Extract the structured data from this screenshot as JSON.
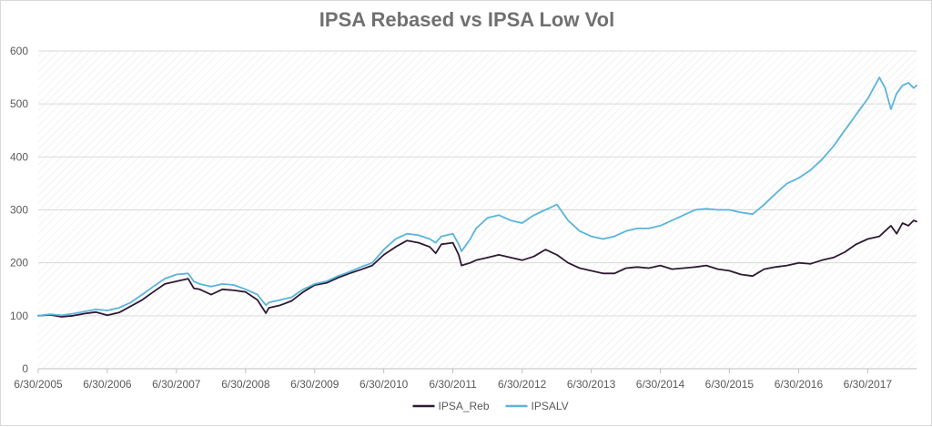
{
  "chart_data": {
    "type": "line",
    "title": "IPSA Rebased vs IPSA Low Vol",
    "xlabel": "",
    "ylabel": "",
    "ylim": [
      0,
      600
    ],
    "yticks": [
      0,
      100,
      200,
      300,
      400,
      500,
      600
    ],
    "xlim": [
      "6/30/2005",
      "3/15/2018"
    ],
    "xticks": [
      "6/30/2005",
      "6/30/2006",
      "6/30/2007",
      "6/30/2008",
      "6/30/2009",
      "6/30/2010",
      "6/30/2011",
      "6/30/2012",
      "6/30/2013",
      "6/30/2014",
      "6/30/2015",
      "6/30/2016",
      "6/30/2017"
    ],
    "grid": true,
    "legend_position": "bottom",
    "series": [
      {
        "name": "IPSA_Reb",
        "color": "#2e1a33",
        "x": [
          "6/30/2005",
          "8/31/2005",
          "10/31/2005",
          "12/31/2005",
          "2/28/2006",
          "4/30/2006",
          "6/30/2006",
          "8/31/2006",
          "10/31/2006",
          "12/31/2006",
          "2/28/2007",
          "4/30/2007",
          "6/30/2007",
          "8/31/2007",
          "9/30/2007",
          "10/31/2007",
          "12/31/2007",
          "2/28/2008",
          "4/30/2008",
          "6/30/2008",
          "8/31/2008",
          "10/15/2008",
          "10/31/2008",
          "12/31/2008",
          "2/28/2009",
          "4/30/2009",
          "6/30/2009",
          "8/31/2009",
          "10/31/2009",
          "12/31/2009",
          "2/28/2010",
          "4/30/2010",
          "6/30/2010",
          "8/31/2010",
          "10/31/2010",
          "12/31/2010",
          "2/28/2011",
          "3/31/2011",
          "4/30/2011",
          "6/30/2011",
          "7/31/2011",
          "8/15/2011",
          "9/30/2011",
          "10/31/2011",
          "12/31/2011",
          "2/28/2012",
          "4/30/2012",
          "6/30/2012",
          "8/31/2012",
          "10/31/2012",
          "12/31/2012",
          "2/28/2013",
          "4/30/2013",
          "6/30/2013",
          "8/31/2013",
          "10/31/2013",
          "12/31/2013",
          "2/28/2014",
          "4/30/2014",
          "6/30/2014",
          "8/31/2014",
          "10/31/2014",
          "12/31/2014",
          "2/28/2015",
          "4/30/2015",
          "6/30/2015",
          "8/31/2015",
          "10/31/2015",
          "12/31/2015",
          "2/28/2016",
          "4/30/2016",
          "6/30/2016",
          "8/31/2016",
          "10/31/2016",
          "12/31/2016",
          "2/28/2017",
          "4/30/2017",
          "6/30/2017",
          "8/31/2017",
          "9/30/2017",
          "10/31/2017",
          "11/30/2017",
          "12/31/2017",
          "1/31/2018",
          "2/28/2018",
          "3/15/2018"
        ],
        "values": [
          100,
          102,
          98,
          100,
          104,
          107,
          101,
          106,
          118,
          130,
          145,
          160,
          165,
          170,
          152,
          150,
          140,
          150,
          148,
          145,
          130,
          105,
          115,
          120,
          128,
          145,
          158,
          162,
          172,
          180,
          187,
          195,
          215,
          230,
          242,
          238,
          230,
          218,
          235,
          238,
          215,
          195,
          200,
          205,
          210,
          215,
          210,
          205,
          212,
          225,
          215,
          200,
          190,
          185,
          180,
          180,
          190,
          192,
          190,
          195,
          188,
          190,
          192,
          195,
          188,
          185,
          178,
          175,
          188,
          192,
          195,
          200,
          198,
          205,
          210,
          220,
          235,
          245,
          250,
          260,
          270,
          255,
          275,
          270,
          280,
          278
        ]
      },
      {
        "name": "IPSALV",
        "color": "#5ab4db",
        "x": [
          "6/30/2005",
          "8/31/2005",
          "10/31/2005",
          "12/31/2005",
          "2/28/2006",
          "4/30/2006",
          "6/30/2006",
          "8/31/2006",
          "10/31/2006",
          "12/31/2006",
          "2/28/2007",
          "4/30/2007",
          "6/30/2007",
          "8/31/2007",
          "9/30/2007",
          "10/31/2007",
          "12/31/2007",
          "2/28/2008",
          "4/30/2008",
          "6/30/2008",
          "8/31/2008",
          "10/15/2008",
          "10/31/2008",
          "12/31/2008",
          "2/28/2009",
          "4/30/2009",
          "6/30/2009",
          "8/31/2009",
          "10/31/2009",
          "12/31/2009",
          "2/28/2010",
          "4/30/2010",
          "6/30/2010",
          "8/31/2010",
          "10/31/2010",
          "12/31/2010",
          "2/28/2011",
          "3/31/2011",
          "4/30/2011",
          "6/30/2011",
          "7/31/2011",
          "8/15/2011",
          "9/30/2011",
          "10/31/2011",
          "12/31/2011",
          "2/28/2012",
          "4/30/2012",
          "6/30/2012",
          "8/31/2012",
          "10/31/2012",
          "12/31/2012",
          "2/28/2013",
          "4/30/2013",
          "6/30/2013",
          "8/31/2013",
          "10/31/2013",
          "12/31/2013",
          "2/28/2014",
          "4/30/2014",
          "6/30/2014",
          "8/31/2014",
          "10/31/2014",
          "12/31/2014",
          "2/28/2015",
          "4/30/2015",
          "6/30/2015",
          "8/31/2015",
          "10/31/2015",
          "12/31/2015",
          "2/28/2016",
          "4/30/2016",
          "6/30/2016",
          "8/31/2016",
          "10/31/2016",
          "12/31/2016",
          "2/28/2017",
          "4/30/2017",
          "6/30/2017",
          "8/31/2017",
          "9/30/2017",
          "10/31/2017",
          "11/30/2017",
          "12/31/2017",
          "1/31/2018",
          "2/28/2018",
          "3/15/2018"
        ],
        "values": [
          100,
          103,
          101,
          104,
          108,
          112,
          110,
          115,
          125,
          140,
          155,
          170,
          178,
          180,
          165,
          160,
          155,
          160,
          158,
          150,
          140,
          120,
          125,
          130,
          135,
          150,
          160,
          165,
          175,
          183,
          192,
          200,
          225,
          245,
          255,
          252,
          245,
          238,
          250,
          255,
          235,
          222,
          245,
          265,
          285,
          290,
          280,
          275,
          290,
          300,
          310,
          280,
          260,
          250,
          245,
          250,
          260,
          265,
          265,
          270,
          280,
          290,
          300,
          302,
          300,
          300,
          295,
          292,
          310,
          330,
          350,
          360,
          375,
          395,
          420,
          450,
          480,
          510,
          550,
          530,
          490,
          520,
          535,
          540,
          530,
          535
        ]
      }
    ]
  }
}
